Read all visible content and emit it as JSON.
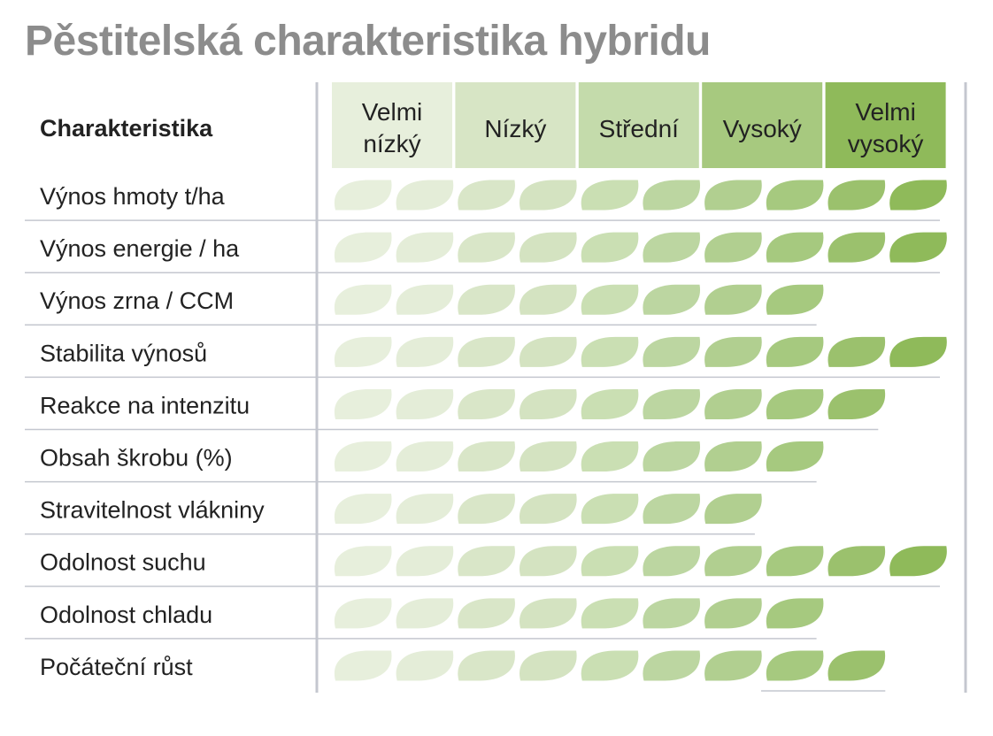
{
  "title": "Pěstitelská charakteristika hybridu",
  "colors": {
    "title": "#8c8c8c",
    "text": "#222222",
    "divider": "#c4c7cf",
    "level_fills": [
      "#e7efdc",
      "#d7e5c5",
      "#c4dbab",
      "#a7c97f",
      "#8fba5a"
    ],
    "leaf_fills": [
      "#e7efdc",
      "#e4edd8",
      "#d9e6c8",
      "#d4e3c1",
      "#cadfb3",
      "#bcd6a1",
      "#b1cf90",
      "#a6c97f",
      "#9bc16d",
      "#8fba5a"
    ]
  },
  "icon": "leaf-icon",
  "chart_data": {
    "type": "table",
    "row_header": "Charakteristika",
    "levels": [
      {
        "line1": "Velmi",
        "line2": "nízký"
      },
      {
        "line1": "Nízký",
        "line2": ""
      },
      {
        "line1": "Střední",
        "line2": ""
      },
      {
        "line1": "Vysoký",
        "line2": ""
      },
      {
        "line1": "Velmi",
        "line2": "vysoký"
      }
    ],
    "max_leaves": 10,
    "rows": [
      {
        "label": "Výnos hmoty t/ha",
        "leaves": 10
      },
      {
        "label": "Výnos energie / ha",
        "leaves": 10
      },
      {
        "label": "Výnos zrna / CCM",
        "leaves": 8
      },
      {
        "label": "Stabilita výnosů",
        "leaves": 10
      },
      {
        "label": "Reakce na intenzitu",
        "leaves": 9
      },
      {
        "label": "Obsah škrobu (%)",
        "leaves": 8
      },
      {
        "label": "Stravitelnost vlákniny",
        "leaves": 7
      },
      {
        "label": "Odolnost suchu",
        "leaves": 10
      },
      {
        "label": "Odolnost chladu",
        "leaves": 8
      },
      {
        "label": "Počáteční růst",
        "leaves": 9
      }
    ]
  }
}
